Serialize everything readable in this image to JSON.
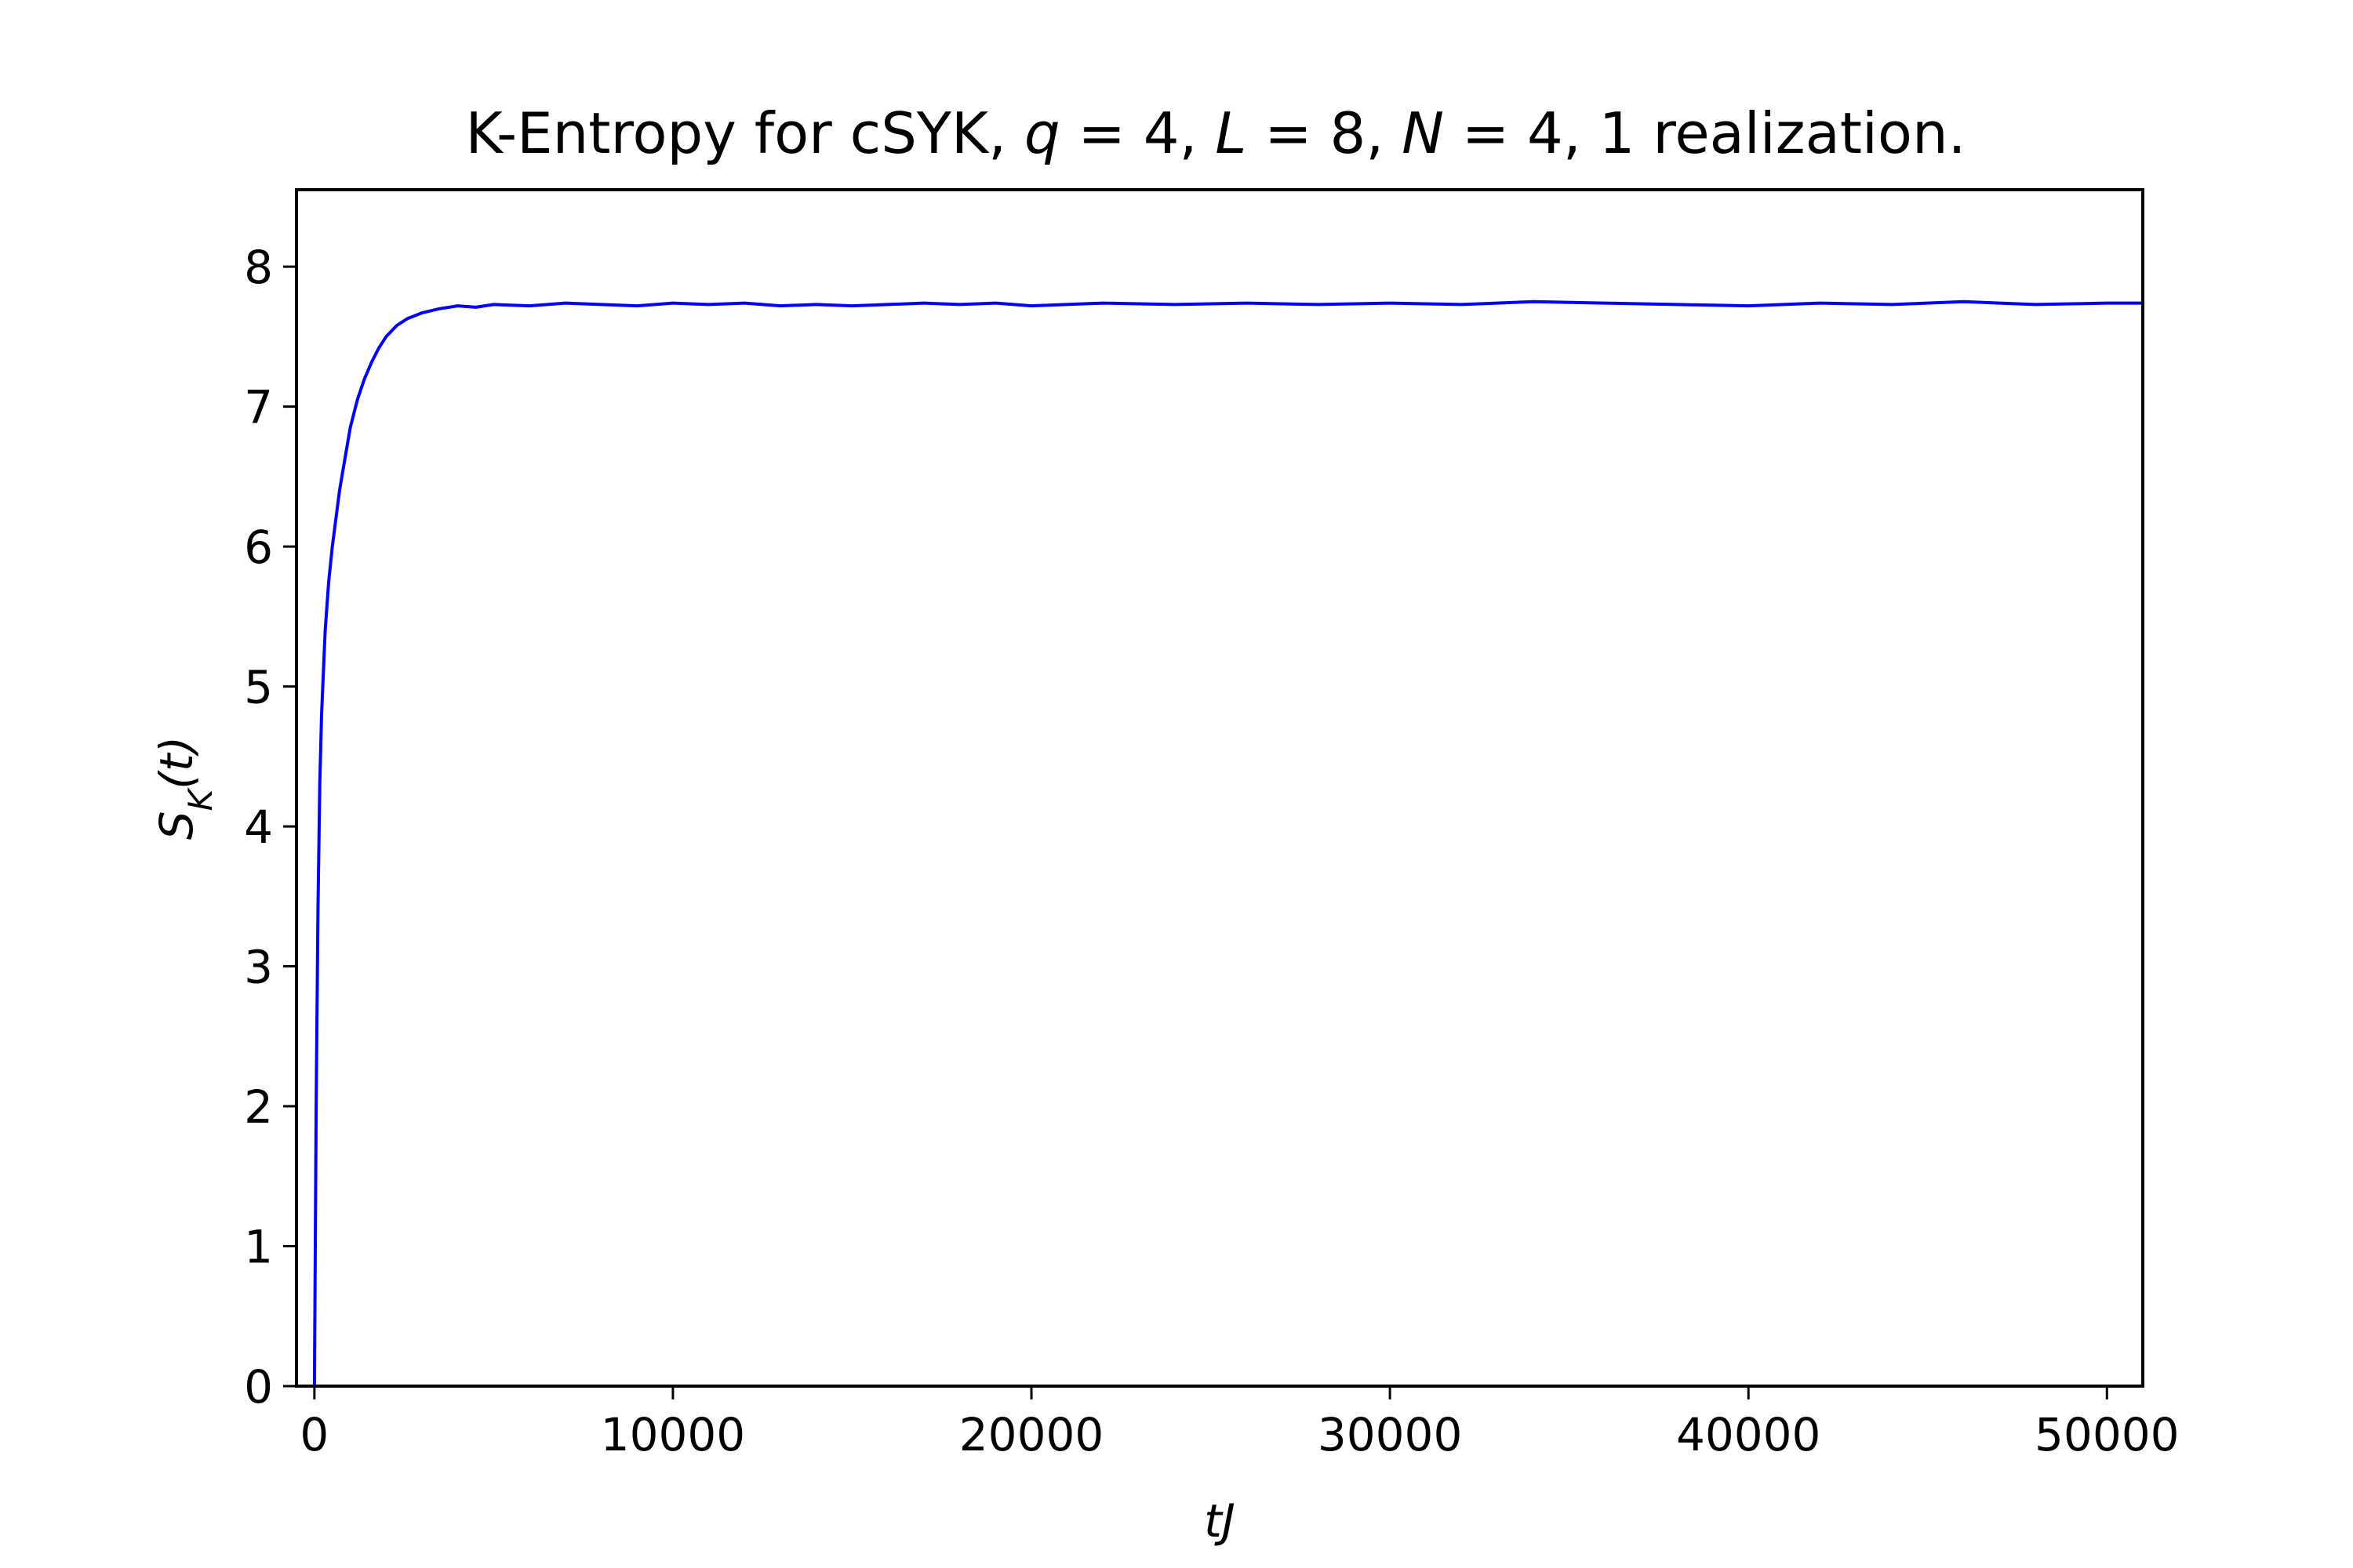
{
  "chart_data": {
    "type": "line",
    "title": "K-Entropy for cSYK, q = 4, L = 8, N = 4, 1 realization.",
    "title_parts": {
      "t1": "K-Entropy for cSYK, ",
      "q_sym": "q",
      "eq1": " = 4, ",
      "L_sym": "L",
      "eq2": " = 8, ",
      "N_sym": "N",
      "eq3": " = 4, 1 realization."
    },
    "xlabel": "tJ",
    "ylabel": "S_K(t)",
    "ylabel_parts": {
      "S": "S",
      "K": "K",
      "rest": "(t)"
    },
    "xlim": [
      -500,
      51000
    ],
    "ylim": [
      0,
      8.55
    ],
    "xticks": [
      0,
      10000,
      20000,
      30000,
      40000,
      50000
    ],
    "xtick_labels": [
      "0",
      "10000",
      "20000",
      "30000",
      "40000",
      "50000"
    ],
    "yticks": [
      0,
      1,
      2,
      3,
      4,
      5,
      6,
      7,
      8
    ],
    "ytick_labels": [
      "0",
      "1",
      "2",
      "3",
      "4",
      "5",
      "6",
      "7",
      "8"
    ],
    "grid": false,
    "series": [
      {
        "color": "#0000ff",
        "x": [
          0,
          50,
          100,
          150,
          200,
          300,
          400,
          500,
          600,
          700,
          800,
          1000,
          1200,
          1400,
          1600,
          1800,
          2000,
          2300,
          2600,
          3000,
          3500,
          4000,
          4500,
          5000,
          6000,
          7000,
          8000,
          9000,
          10000,
          11000,
          12000,
          13000,
          14000,
          15000,
          16000,
          17000,
          18000,
          19000,
          20000,
          22000,
          24000,
          26000,
          28000,
          30000,
          32000,
          34000,
          36000,
          38000,
          40000,
          42000,
          44000,
          46000,
          48000,
          50000,
          51000
        ],
        "y": [
          0,
          2.0,
          3.4,
          4.3,
          4.8,
          5.4,
          5.75,
          6.0,
          6.2,
          6.4,
          6.55,
          6.85,
          7.05,
          7.2,
          7.32,
          7.42,
          7.5,
          7.58,
          7.63,
          7.67,
          7.7,
          7.72,
          7.71,
          7.73,
          7.72,
          7.74,
          7.73,
          7.72,
          7.74,
          7.73,
          7.74,
          7.72,
          7.73,
          7.72,
          7.73,
          7.74,
          7.73,
          7.74,
          7.72,
          7.74,
          7.73,
          7.74,
          7.73,
          7.74,
          7.73,
          7.75,
          7.74,
          7.73,
          7.72,
          7.74,
          7.73,
          7.75,
          7.73,
          7.74,
          7.74
        ]
      }
    ]
  }
}
